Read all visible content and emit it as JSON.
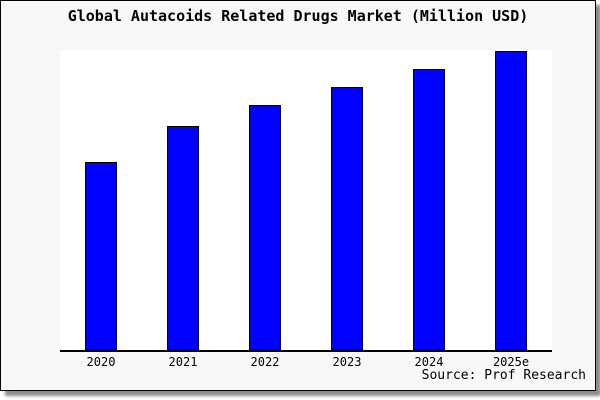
{
  "chart_data": {
    "type": "bar",
    "title": "Global Autacoids Related Drugs Market (Million USD)",
    "categories": [
      "2020",
      "2021",
      "2022",
      "2023",
      "2024",
      "2025e"
    ],
    "values": [
      0.63,
      0.75,
      0.82,
      0.88,
      0.94,
      1.0
    ],
    "value_scale": "relative heights; y-axis has no ticks or value labels, tallest bar (2025e) = 1.0",
    "xlabel": "",
    "ylabel": "",
    "ylim": [
      0,
      1.0
    ],
    "grid": false,
    "legend": false,
    "bar_color": "#0000ff",
    "bar_border_color": "#000000",
    "axis_color": "#000000",
    "plot_background": "#ffffff",
    "frame_background": "#f8f8f8"
  },
  "source_label": "Source: Prof Research"
}
